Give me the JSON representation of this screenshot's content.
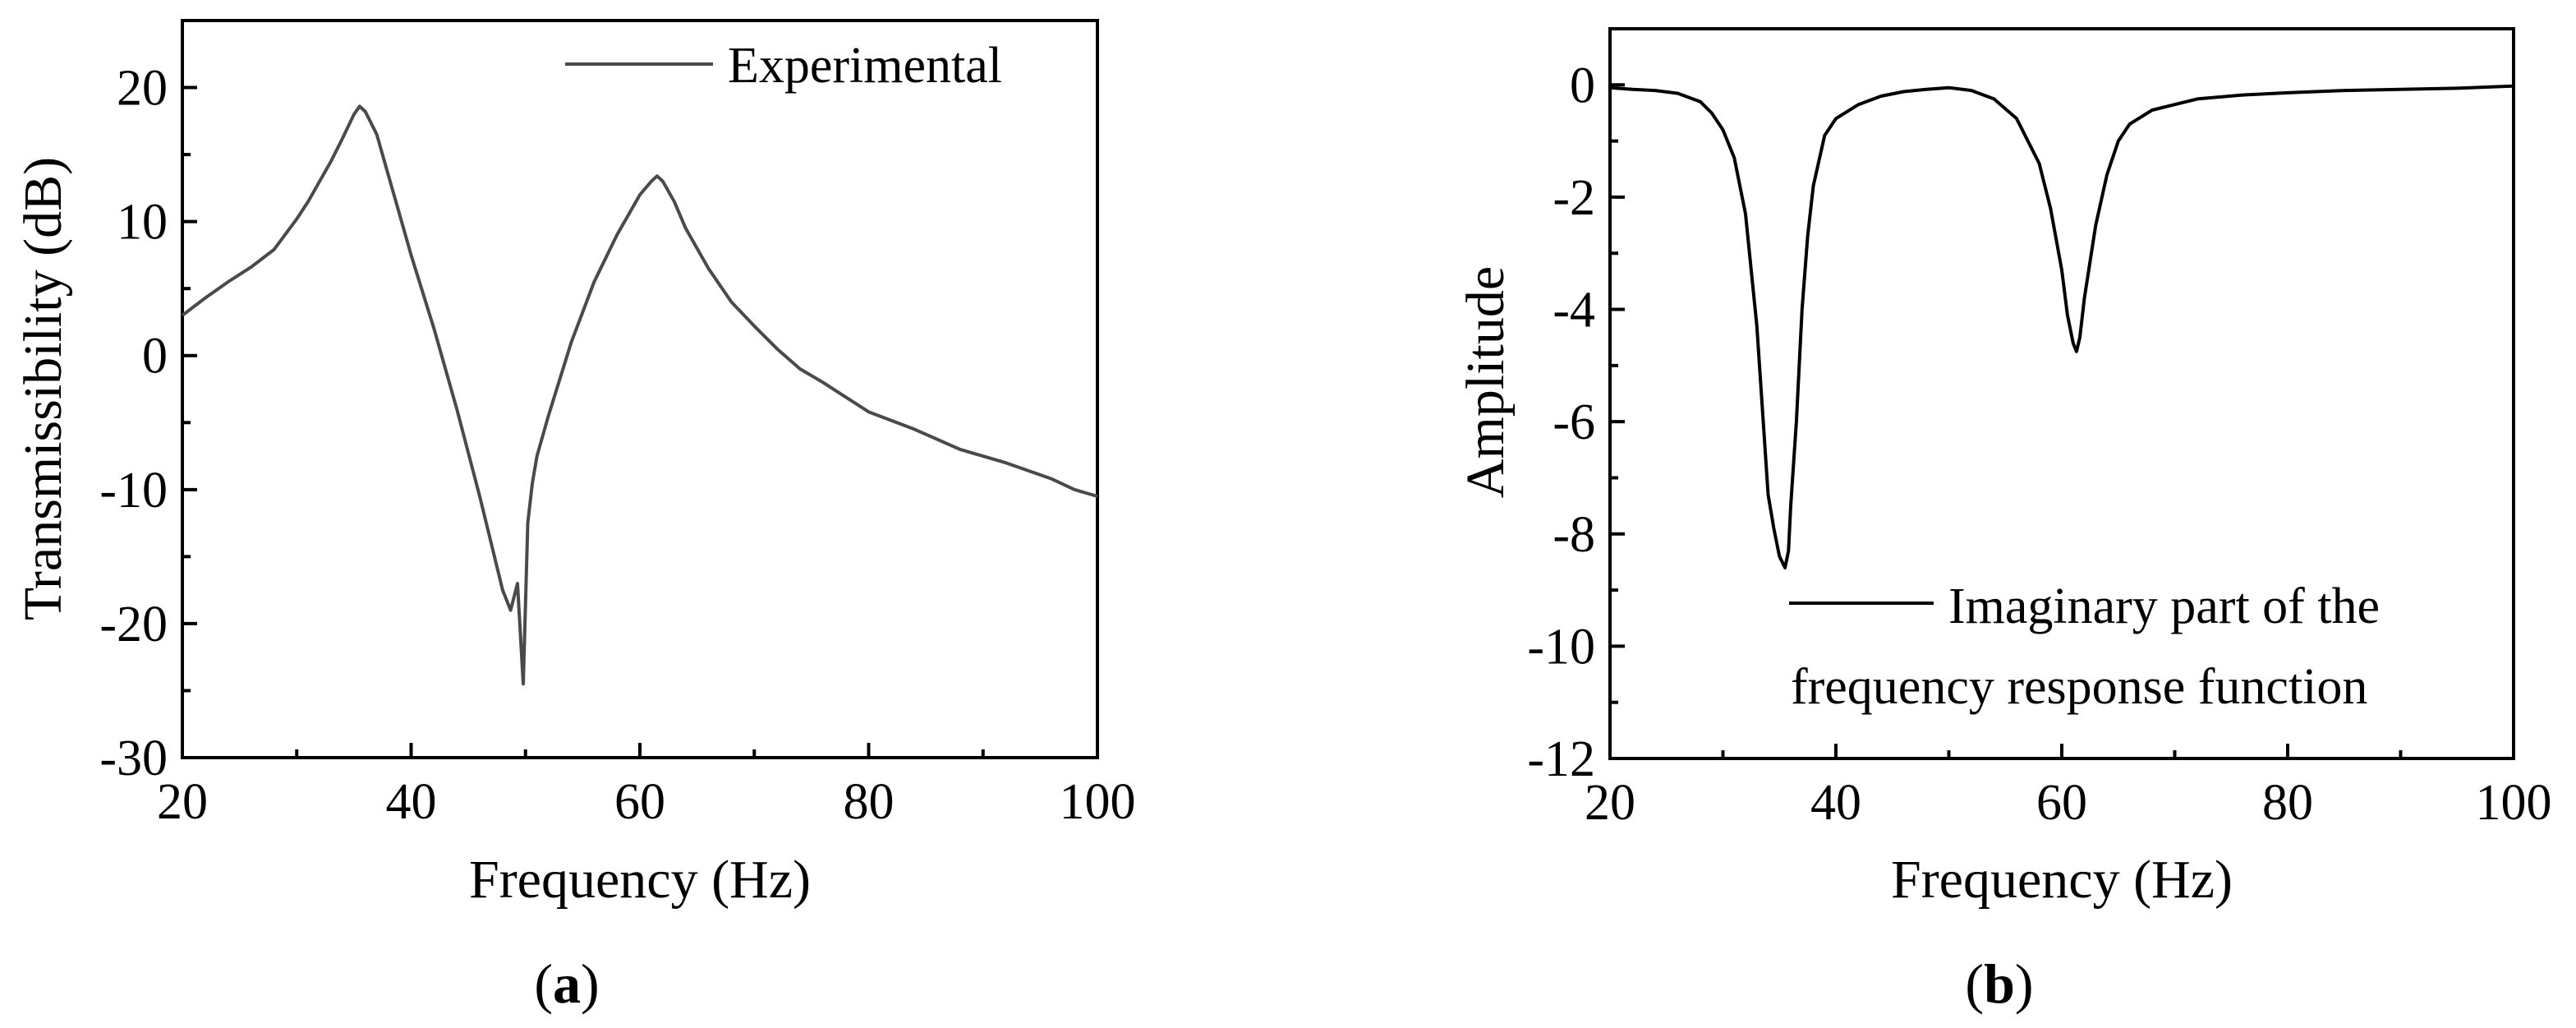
{
  "chart_data": [
    {
      "type": "line",
      "panel_label": "a",
      "xlabel": "Frequency (Hz)",
      "ylabel": "Transmissibility (dB)",
      "xlim": [
        20,
        100
      ],
      "ylim": [
        -30,
        25
      ],
      "xticks": [
        20,
        40,
        60,
        80,
        100
      ],
      "yticks": [
        -30,
        -20,
        -10,
        0,
        10,
        20
      ],
      "legend_position": "top-right",
      "line_color": "#4a4a4a",
      "series": [
        {
          "name": "Experimental",
          "x": [
            20,
            22,
            24,
            26,
            28,
            30,
            31,
            32,
            33,
            34,
            35,
            35.5,
            36,
            37,
            38,
            39,
            40,
            42,
            44,
            46,
            47,
            48,
            48.7,
            49.3,
            49.8,
            50.2,
            50.6,
            51,
            52,
            54,
            56,
            58,
            60,
            61,
            61.5,
            62,
            63,
            64,
            66,
            68,
            70,
            72,
            74,
            76,
            80,
            84,
            88,
            92,
            96,
            98,
            100
          ],
          "y": [
            3,
            4.3,
            5.5,
            6.6,
            7.9,
            10.2,
            11.5,
            13,
            14.5,
            16.2,
            18,
            18.6,
            18.2,
            16.5,
            13.5,
            10.5,
            7.5,
            2,
            -4,
            -10.5,
            -14,
            -17.5,
            -19,
            -17,
            -24.5,
            -12.5,
            -9.5,
            -7.5,
            -4.5,
            1,
            5.5,
            9,
            12,
            13,
            13.4,
            13,
            11.5,
            9.5,
            6.5,
            4,
            2.2,
            0.5,
            -1,
            -2,
            -4.2,
            -5.5,
            -7,
            -8,
            -9.2,
            -10,
            -10.5
          ]
        }
      ]
    },
    {
      "type": "line",
      "panel_label": "b",
      "xlabel": "Frequency (Hz)",
      "ylabel": "Amplitude",
      "xlim": [
        20,
        100
      ],
      "ylim": [
        -12,
        1
      ],
      "xticks": [
        20,
        40,
        60,
        80,
        100
      ],
      "yticks": [
        0,
        -2,
        -4,
        -6,
        -8,
        -10,
        -12
      ],
      "legend_position": "bottom-right",
      "line_color": "#000000",
      "series": [
        {
          "name": "Imaginary part of the frequency response function",
          "legend_lines": [
            "Imaginary part of the",
            "frequency response function"
          ],
          "x": [
            20,
            22,
            24,
            26,
            28,
            29,
            30,
            31,
            32,
            33,
            34,
            34.5,
            35,
            35.5,
            35.8,
            36,
            36.5,
            37,
            37.5,
            38,
            39,
            40,
            42,
            44,
            46,
            48,
            50,
            52,
            54,
            56,
            58,
            59,
            60,
            60.5,
            61,
            61.3,
            61.6,
            62,
            63,
            64,
            65,
            66,
            68,
            70,
            72,
            76,
            80,
            85,
            90,
            95,
            100
          ],
          "y": [
            -0.05,
            -0.08,
            -0.1,
            -0.15,
            -0.3,
            -0.5,
            -0.8,
            -1.3,
            -2.3,
            -4.3,
            -7.3,
            -7.9,
            -8.4,
            -8.6,
            -8.3,
            -7.5,
            -6,
            -4,
            -2.7,
            -1.8,
            -0.9,
            -0.6,
            -0.35,
            -0.2,
            -0.12,
            -0.08,
            -0.05,
            -0.1,
            -0.25,
            -0.6,
            -1.4,
            -2.2,
            -3.3,
            -4.1,
            -4.6,
            -4.75,
            -4.5,
            -3.8,
            -2.5,
            -1.6,
            -1,
            -0.7,
            -0.45,
            -0.35,
            -0.25,
            -0.18,
            -0.14,
            -0.1,
            -0.08,
            -0.06,
            -0.02
          ]
        }
      ]
    }
  ]
}
